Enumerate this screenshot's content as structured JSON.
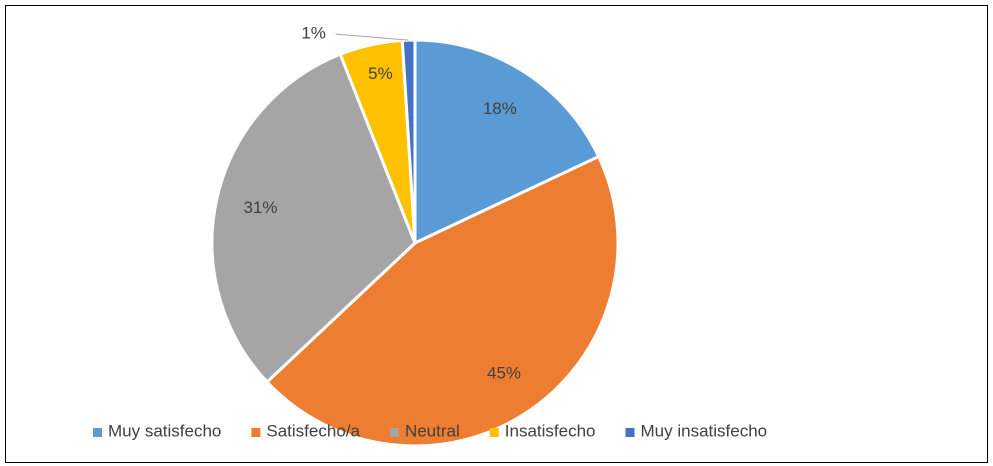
{
  "chart_data": {
    "type": "pie",
    "categories": [
      "Muy satisfecho",
      "Satisfecho/a",
      "Neutral",
      "Insatisfecho",
      "Muy insatisfecho"
    ],
    "values": [
      18,
      45,
      31,
      5,
      1
    ],
    "value_labels": [
      "18%",
      "45%",
      "31%",
      "5%",
      "1%"
    ],
    "colors": [
      "#5b9bd5",
      "#ed7d31",
      "#a5a5a5",
      "#ffc000",
      "#4472c4"
    ],
    "legend": "bottom"
  }
}
